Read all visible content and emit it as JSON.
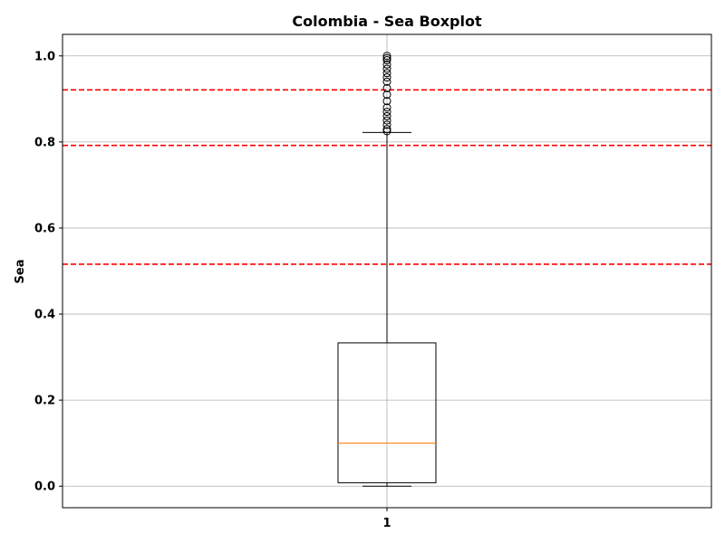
{
  "chart_data": {
    "type": "boxplot",
    "title": "Colombia - Sea Boxplot",
    "xlabel": "",
    "ylabel": "Sea",
    "categories": [
      "1"
    ],
    "ylim": [
      -0.05,
      1.05
    ],
    "yticks": [
      0.0,
      0.2,
      0.4,
      0.6,
      0.8,
      1.0
    ],
    "ytick_labels": [
      "0.0",
      "0.2",
      "0.4",
      "0.6",
      "0.8",
      "1.0"
    ],
    "grid": true,
    "boxes": [
      {
        "category": "1",
        "whisker_low": 0.0,
        "q1": 0.008,
        "median": 0.1,
        "q3": 0.333,
        "whisker_high": 0.822,
        "outliers": [
          0.825,
          0.83,
          0.84,
          0.85,
          0.86,
          0.87,
          0.88,
          0.895,
          0.91,
          0.925,
          0.94,
          0.95,
          0.96,
          0.97,
          0.98,
          0.99,
          0.995,
          1.0
        ]
      }
    ],
    "reference_lines": [
      {
        "y": 0.516,
        "color": "#ff0000",
        "style": "dashed"
      },
      {
        "y": 0.792,
        "color": "#ff0000",
        "style": "dashed"
      },
      {
        "y": 0.921,
        "color": "#ff0000",
        "style": "dashed"
      }
    ],
    "colors": {
      "box": "#000000",
      "median": "#ff7f0e",
      "grid": "#b0b0b0",
      "reference": "#ff0000"
    }
  }
}
